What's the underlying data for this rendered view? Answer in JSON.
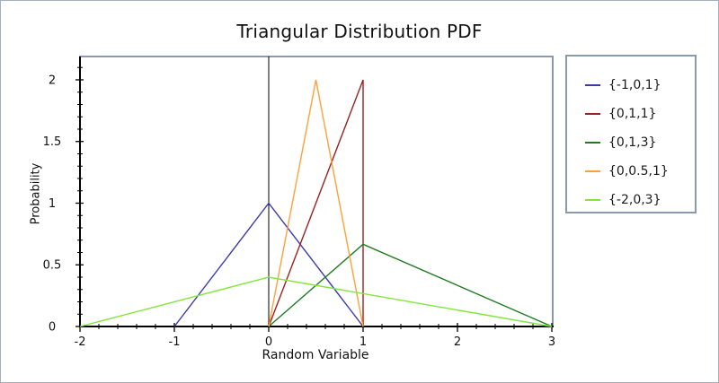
{
  "chart_data": {
    "type": "line",
    "title": "Triangular Distribution PDF",
    "xlabel": "Random Variable",
    "ylabel": "Probability",
    "xlim": [
      -2,
      3
    ],
    "ylim": [
      0,
      2.189
    ],
    "xticks": [
      -2,
      -1,
      0,
      1,
      2,
      3
    ],
    "yticks": [
      0,
      0.5,
      1,
      1.5,
      2
    ],
    "x_minor_step": 0.2,
    "y_minor_step": 0.1,
    "grid": false,
    "legend_position": "right",
    "frame_color": "#8b99ad",
    "axis_color": "#000000",
    "zero_line_x": 0,
    "series": [
      {
        "name": "{-1,0,1}",
        "color": "#3a3aae",
        "points": [
          [
            -1,
            0
          ],
          [
            0,
            1
          ],
          [
            1,
            0
          ]
        ]
      },
      {
        "name": "{0,1,1}",
        "color": "#9b2220",
        "points": [
          [
            0,
            0
          ],
          [
            1,
            2
          ],
          [
            1,
            0
          ]
        ]
      },
      {
        "name": "{0,1,3}",
        "color": "#1f7a20",
        "points": [
          [
            0,
            0
          ],
          [
            1,
            0.6667
          ],
          [
            3,
            0
          ]
        ]
      },
      {
        "name": "{0,0.5,1}",
        "color": "#ffa03a",
        "points": [
          [
            0,
            0
          ],
          [
            0.5,
            2
          ],
          [
            1,
            0
          ]
        ]
      },
      {
        "name": "{-2,0,3}",
        "color": "#82e738",
        "points": [
          [
            -2,
            0
          ],
          [
            0,
            0.4
          ],
          [
            3,
            0
          ]
        ]
      }
    ]
  }
}
